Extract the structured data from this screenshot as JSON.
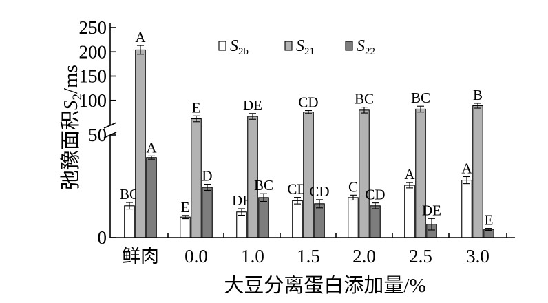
{
  "chart_data": {
    "type": "bar",
    "xlabel": "大豆分离蛋白添加量/%",
    "ylabel": "弛豫面积S2/ms",
    "categories": [
      "鲜肉",
      "0.0",
      "1.0",
      "1.5",
      "2.0",
      "2.5",
      "3.0"
    ],
    "y_axis": {
      "broken": true,
      "lower_segment": {
        "range": [
          0,
          50
        ],
        "tick_labels": [
          "0"
        ]
      },
      "upper_segment": {
        "range": [
          50,
          250
        ],
        "ticks": [
          50,
          100,
          150,
          200,
          250
        ],
        "tick_labels": [
          "50",
          "100",
          "150",
          "200",
          "250"
        ]
      }
    },
    "legend_placement": "top-center",
    "series": [
      {
        "name": "S2b",
        "legend_main": "S",
        "legend_sub": "2b",
        "color": "#ffffff",
        "values": [
          15.5,
          10.0,
          12.5,
          18.0,
          19.5,
          25.5,
          28.0
        ],
        "errors": [
          1.6,
          0.8,
          1.6,
          1.6,
          1.2,
          1.3,
          1.7
        ],
        "sig": [
          "BC",
          "E",
          "DE",
          "CD",
          "C",
          "A",
          "A"
        ]
      },
      {
        "name": "S21",
        "legend_main": "S",
        "legend_sub": "21",
        "color": "#b3b3b3",
        "values": [
          204,
          62,
          67,
          76,
          80,
          82,
          89
        ],
        "errors": [
          9,
          6,
          6,
          3,
          6,
          6,
          5
        ],
        "sig": [
          "A",
          "E",
          "DE",
          "CD",
          "BC",
          "BC",
          "B"
        ]
      },
      {
        "name": "S22",
        "legend_main": "S",
        "legend_sub": "22",
        "color": "#7d7d7d",
        "values": [
          39.0,
          24.5,
          19.5,
          16.5,
          15.5,
          6.5,
          4.0
        ],
        "errors": [
          0.8,
          1.5,
          1.9,
          2.0,
          1.4,
          2.8,
          0.5
        ],
        "sig": [
          "A",
          "D",
          "BC",
          "CD",
          "CD",
          "DE",
          "E"
        ]
      }
    ]
  }
}
